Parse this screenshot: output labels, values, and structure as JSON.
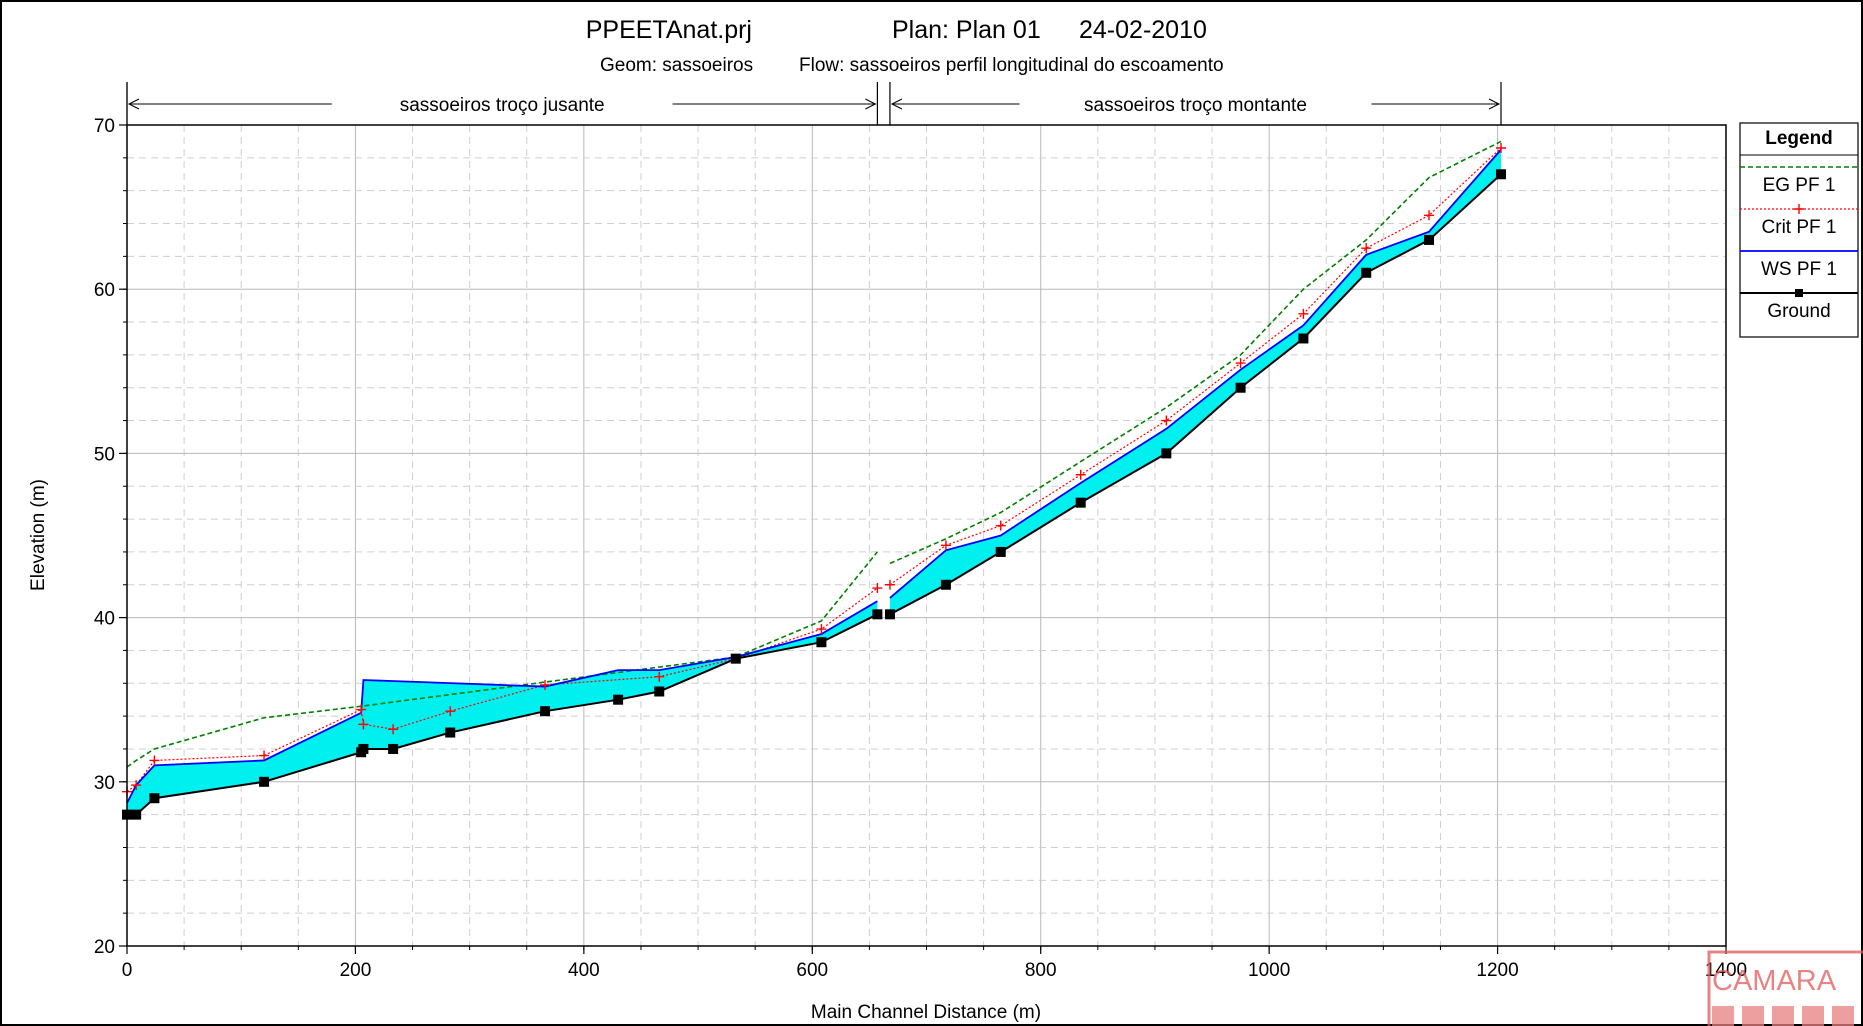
{
  "chart_data": {
    "type": "line",
    "title": "PPEETAnat.prj",
    "plan": "Plan: Plan 01",
    "date": "24-02-2010",
    "subtitle_geom": "Geom: sassoeiros",
    "subtitle_flow": "Flow: sassoeiros  perfil longitudinal do escoamento",
    "xlabel": "Main Channel Distance (m)",
    "ylabel": "Elevation (m)",
    "xlim": [
      0,
      1400
    ],
    "ylim": [
      20,
      70
    ],
    "x_ticks": [
      0,
      200,
      400,
      600,
      800,
      1000,
      1200,
      1400
    ],
    "y_ticks": [
      20,
      30,
      40,
      50,
      60,
      70
    ],
    "grid": true,
    "legend_position": "right",
    "legend_title": "Legend",
    "reaches": [
      {
        "name": "sassoeiros troço jusante",
        "x_start": 0,
        "x_end": 657
      },
      {
        "name": "sassoeiros troço montante",
        "x_start": 668,
        "x_end": 1203
      }
    ],
    "series": [
      {
        "name": "EG  PF 1",
        "color": "#008000",
        "segments": [
          {
            "x": [
              0,
              8,
              24,
              120,
              205,
              533,
              608,
              657
            ],
            "y": [
              30.9,
              31.3,
              32.0,
              33.9,
              34.6,
              37.6,
              39.8,
              44.0
            ]
          },
          {
            "x": [
              668,
              717,
              765,
              835,
              910,
              975,
              1030,
              1085,
              1140,
              1203
            ],
            "y": [
              43.3,
              44.8,
              46.4,
              49.5,
              52.8,
              56.0,
              60.0,
              63.0,
              66.8,
              69.0
            ]
          }
        ]
      },
      {
        "name": "Crit  PF 1",
        "color": "#ff0000",
        "segments": [
          {
            "x": [
              0,
              8,
              24,
              120,
              205,
              207,
              233,
              283,
              366,
              466,
              533,
              608,
              657
            ],
            "y": [
              29.4,
              29.8,
              31.3,
              31.6,
              34.4,
              33.5,
              33.2,
              34.3,
              35.9,
              36.4,
              37.5,
              39.3,
              41.8
            ]
          },
          {
            "x": [
              668,
              717,
              765,
              835,
              910,
              975,
              1030,
              1085,
              1140,
              1203
            ],
            "y": [
              42.0,
              44.4,
              45.6,
              48.7,
              52.0,
              55.5,
              58.5,
              62.5,
              64.5,
              68.6
            ]
          }
        ]
      },
      {
        "name": "WS  PF 1",
        "color": "#0000ff",
        "segments": [
          {
            "x": [
              0,
              8,
              24,
              120,
              205,
              207,
              366,
              430,
              466,
              533,
              608,
              657
            ],
            "y": [
              28.7,
              29.8,
              31.0,
              31.3,
              34.2,
              36.2,
              35.8,
              36.8,
              36.8,
              37.6,
              39.0,
              41.0
            ]
          },
          {
            "x": [
              668,
              717,
              765,
              835,
              910,
              975,
              1030,
              1085,
              1140,
              1203
            ],
            "y": [
              41.2,
              44.1,
              45.0,
              48.2,
              51.5,
              55.1,
              57.8,
              62.1,
              63.5,
              68.5
            ]
          }
        ]
      },
      {
        "name": "Ground",
        "color": "#000000",
        "segments": [
          {
            "x": [
              0,
              8,
              24,
              120,
              205,
              207,
              233,
              283,
              366,
              430,
              466,
              533,
              608,
              657
            ],
            "y": [
              28.0,
              28.0,
              29.0,
              30.0,
              31.8,
              32.0,
              32.0,
              33.0,
              34.3,
              35.0,
              35.5,
              37.5,
              38.5,
              40.2
            ]
          },
          {
            "x": [
              668,
              717,
              765,
              835,
              910,
              975,
              1030,
              1085,
              1140,
              1203
            ],
            "y": [
              40.2,
              42.0,
              44.0,
              47.0,
              50.0,
              54.0,
              57.0,
              61.0,
              63.0,
              67.0
            ]
          }
        ]
      }
    ]
  },
  "stamp_text": "CAMARA"
}
